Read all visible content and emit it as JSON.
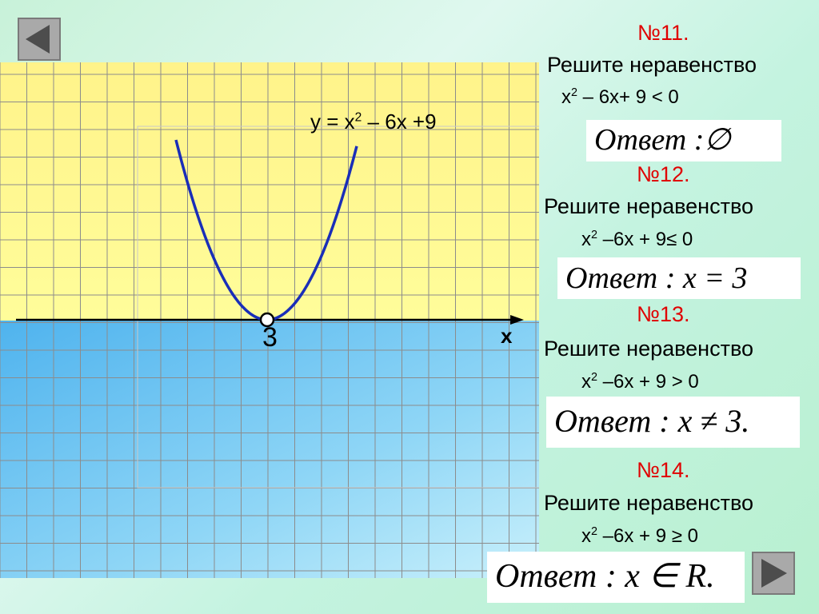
{
  "navigation": {
    "prev_icon": "triangle-left-icon",
    "next_icon": "triangle-right-icon"
  },
  "graph": {
    "function_label": "y = x",
    "function_power": "2",
    "function_rest": " – 6x +9",
    "x_axis_label": "x",
    "vertex_label": "3",
    "colors": {
      "upper_fill": "#fff36a",
      "lower_fill": "#7fd0f4",
      "curve": "#1a2eb8",
      "grid": "#8c8c8c"
    }
  },
  "tasks": [
    {
      "number": "№11.",
      "title": "Решите неравенство",
      "ineq_base": "x",
      "ineq_power": "2",
      "ineq_rest": " – 6x+ 9 < 0",
      "answer": "Ответ :∅"
    },
    {
      "number": "№12.",
      "title": "Решите неравенство",
      "ineq_base": "x",
      "ineq_power": "2",
      "ineq_rest": " –6x + 9≤ 0",
      "answer": "Ответ : x = 3"
    },
    {
      "number": "№13.",
      "title": "Решите неравенство",
      "ineq_base": "x",
      "ineq_power": "2",
      "ineq_rest": " –6x + 9 > 0",
      "answer": "Ответ : x ≠ 3."
    },
    {
      "number": "№14.",
      "title": "Решите неравенство",
      "ineq_base": "x",
      "ineq_power": "2",
      "ineq_rest": " –6x + 9 ≥ 0",
      "answer": "Ответ : x ∈ R."
    }
  ]
}
